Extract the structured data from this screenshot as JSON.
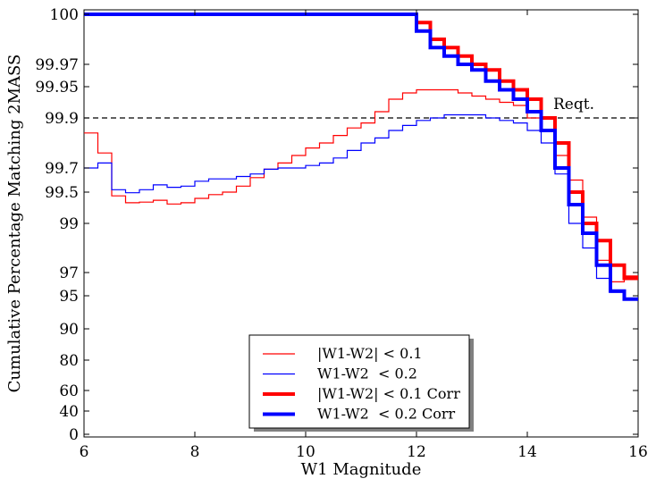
{
  "chart_data": {
    "type": "line",
    "step": true,
    "title": "",
    "xlabel": "W1 Magnitude",
    "ylabel": "Cumulative Percentage Matching 2MASS",
    "xlim": [
      6,
      16
    ],
    "y_scale": "probit-like (nonlinear; ticks read from axis)",
    "xticks": [
      6,
      8,
      10,
      12,
      14,
      16
    ],
    "yticks": [
      "0",
      "40",
      "60",
      "80",
      "90",
      "95",
      "97",
      "99",
      "99.5",
      "99.7",
      "99.9",
      "99.95",
      "99.97",
      "100"
    ],
    "ytick_values": [
      0,
      40,
      60,
      80,
      90,
      95,
      97,
      99,
      99.5,
      99.7,
      99.9,
      99.95,
      99.97,
      100
    ],
    "reference_line": {
      "y": 99.9,
      "label": "Reqt.",
      "style": "dashed",
      "color": "#000000"
    },
    "grid": false,
    "legend": {
      "placement": "lower-center",
      "shadow": true
    },
    "x_edges": [
      6,
      6.25,
      6.5,
      6.75,
      7,
      7.25,
      7.5,
      7.75,
      8,
      8.25,
      8.5,
      8.75,
      9,
      9.25,
      9.5,
      9.75,
      10,
      10.25,
      10.5,
      10.75,
      11,
      11.25,
      11.5,
      11.75,
      12,
      12.25,
      12.5,
      12.75,
      13,
      13.25,
      13.5,
      13.75,
      14,
      14.25,
      14.5,
      14.75,
      15,
      15.25,
      15.5,
      15.75,
      16
    ],
    "series": [
      {
        "name": "|W1-W2| < 0.1",
        "color": "#ff0000",
        "width": "thin",
        "values": [
          99.84,
          99.76,
          99.44,
          99.33,
          99.34,
          99.37,
          99.31,
          99.33,
          99.4,
          99.46,
          99.5,
          99.55,
          99.62,
          99.69,
          99.72,
          99.75,
          99.78,
          99.8,
          99.83,
          99.86,
          99.88,
          99.91,
          99.93,
          99.94,
          99.945,
          99.945,
          99.945,
          99.94,
          99.935,
          99.93,
          99.925,
          99.92,
          99.9,
          99.85,
          99.75,
          99.6,
          99.1,
          97.5,
          96.2,
          96.7
        ]
      },
      {
        "name": "W1-W2  < 0.2",
        "color": "#0000ff",
        "width": "thin",
        "values": [
          99.7,
          99.72,
          99.52,
          99.49,
          99.52,
          99.56,
          99.54,
          99.55,
          99.59,
          99.61,
          99.61,
          99.63,
          99.65,
          99.69,
          99.7,
          99.7,
          99.71,
          99.72,
          99.74,
          99.77,
          99.8,
          99.82,
          99.85,
          99.87,
          99.89,
          99.9,
          99.905,
          99.905,
          99.905,
          99.9,
          99.89,
          99.88,
          99.85,
          99.8,
          99.65,
          99.0,
          98.0,
          96.5,
          95.3,
          94.6
        ]
      },
      {
        "name": "|W1-W2| < 0.1 Corr",
        "color": "#ff0000",
        "width": "thick",
        "values": [
          100,
          100,
          100,
          100,
          100,
          100,
          100,
          100,
          100,
          100,
          100,
          100,
          100,
          100,
          100,
          100,
          100,
          100,
          100,
          100,
          100,
          100,
          100,
          100,
          99.995,
          99.985,
          99.98,
          99.975,
          99.97,
          99.965,
          99.955,
          99.945,
          99.93,
          99.9,
          99.8,
          99.5,
          99.0,
          98.3,
          97.3,
          96.5
        ]
      },
      {
        "name": "W1-W2  < 0.2 Corr",
        "color": "#0000ff",
        "width": "thick",
        "values": [
          100,
          100,
          100,
          100,
          100,
          100,
          100,
          100,
          100,
          100,
          100,
          100,
          100,
          100,
          100,
          100,
          100,
          100,
          100,
          100,
          100,
          100,
          100,
          100,
          99.99,
          99.98,
          99.975,
          99.97,
          99.965,
          99.955,
          99.945,
          99.93,
          99.91,
          99.85,
          99.7,
          99.3,
          98.6,
          97.3,
          95.4,
          94.5
        ]
      }
    ]
  }
}
